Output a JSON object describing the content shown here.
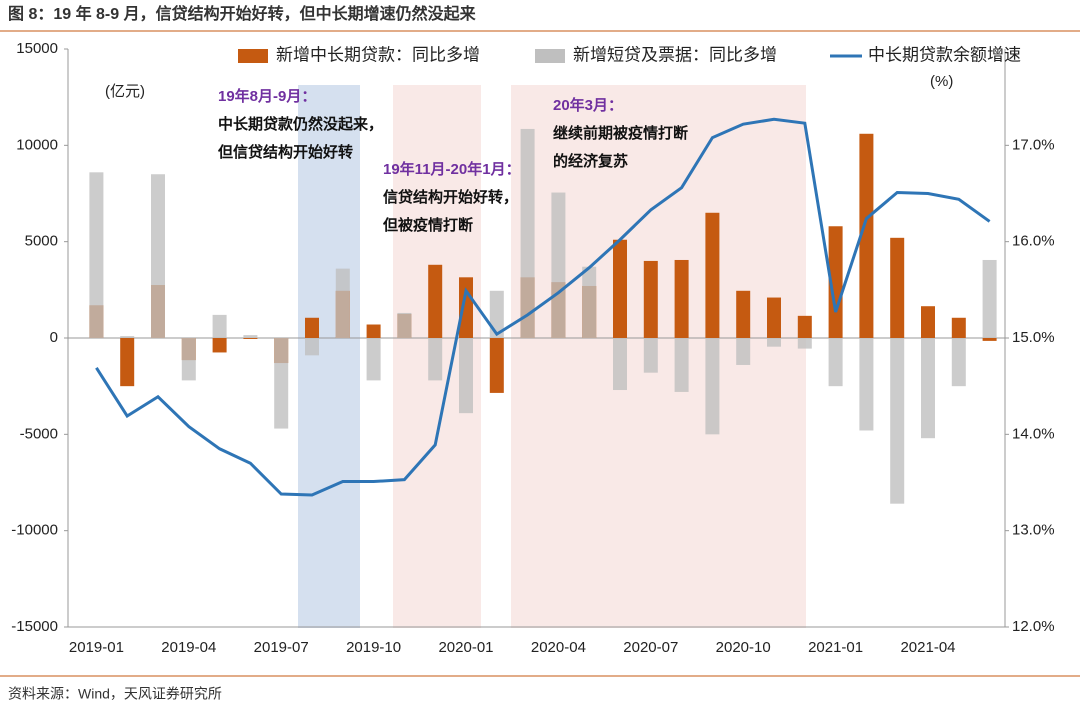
{
  "title": "图 8：19 年 8-9 月，信贷结构开始好转，但中长期增速仍然没起来",
  "source": "资料来源：Wind，天风证券研究所",
  "chart_data": {
    "type": "bar",
    "y_unit": "(亿元)",
    "y2_unit": "(%)",
    "categories": [
      "2019-01",
      null,
      null,
      "2019-04",
      null,
      null,
      "2019-07",
      null,
      null,
      "2019-10",
      null,
      null,
      "2020-01",
      null,
      null,
      "2020-04",
      null,
      null,
      "2020-07",
      null,
      null,
      "2020-10",
      null,
      null,
      "2021-01",
      null,
      null,
      "2021-04",
      null,
      null
    ],
    "series": [
      {
        "name": "新增中长期贷款：同比多增",
        "color": "#c55a11",
        "type": "bar",
        "values": [
          1700,
          -2500,
          2750,
          -1150,
          -750,
          -50,
          -1300,
          1050,
          2450,
          700,
          1250,
          3800,
          3150,
          -2850,
          3150,
          2900,
          2700,
          5100,
          4000,
          4050,
          6500,
          2450,
          2100,
          1150,
          5800,
          10600,
          5200,
          1650,
          1050,
          -150
        ]
      },
      {
        "name": "新增短贷及票据：同比多增",
        "color": "#bfbfbf",
        "type": "bar",
        "values": [
          8600,
          100,
          8500,
          -2200,
          1200,
          150,
          -4700,
          -900,
          3600,
          -2200,
          1300,
          -2200,
          -3900,
          2450,
          10850,
          7550,
          3700,
          -2700,
          -1800,
          -2800,
          -5000,
          -1400,
          -450,
          -550,
          -2500,
          -4800,
          -8600,
          -5200,
          -2500,
          4050
        ]
      },
      {
        "name": "中长期贷款余额增速",
        "color": "#2e75b6",
        "type": "line",
        "axis": "y2",
        "values": [
          14.69,
          14.19,
          14.39,
          14.08,
          13.85,
          13.7,
          13.38,
          13.37,
          13.51,
          13.51,
          13.53,
          13.89,
          15.49,
          15.04,
          15.24,
          15.47,
          15.73,
          16.02,
          16.33,
          16.56,
          17.08,
          17.22,
          17.27,
          17.23,
          15.27,
          16.24,
          16.51,
          16.5,
          16.44,
          16.21
        ]
      }
    ],
    "ylim": [
      -15000,
      15000
    ],
    "yticks": [
      -15000,
      -10000,
      -5000,
      0,
      5000,
      10000,
      15000
    ],
    "y2lim": [
      12,
      18
    ],
    "y2ticks": [
      {
        "value": 12,
        "label": "12.0%"
      },
      {
        "value": 13,
        "label": "13.0%"
      },
      {
        "value": 14,
        "label": "14.0%"
      },
      {
        "value": 15,
        "label": "15.0%"
      },
      {
        "value": 16,
        "label": "16.0%"
      },
      {
        "value": 17,
        "label": "17.0%"
      }
    ],
    "annotations": [
      {
        "lines": [
          "19年8月-9月：",
          "中长期贷款仍然没起来，",
          "但信贷结构开始好转"
        ]
      },
      {
        "lines": [
          "19年11月-20年1月：",
          "信贷结构开始好转，",
          "但被疫情打断"
        ]
      },
      {
        "lines": [
          "20年3月：",
          "继续前期被疫情打断",
          "的经济复苏"
        ]
      }
    ]
  }
}
